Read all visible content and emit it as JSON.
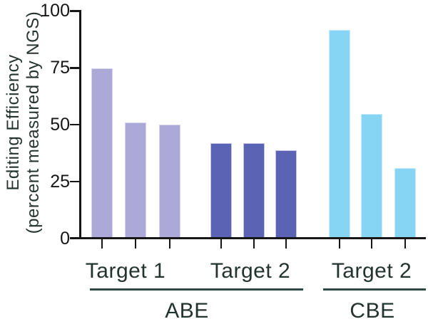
{
  "chart_data": {
    "type": "bar",
    "title": "",
    "ylabel_line1": "Editing Efficiency",
    "ylabel_line2": "(percent measured by NGS)",
    "xlabel": "",
    "ylim": [
      0,
      100
    ],
    "yticks": [
      0,
      25,
      50,
      75,
      100
    ],
    "grid": false,
    "legend": "none",
    "bars_per_group": 3,
    "groups": [
      {
        "target_label": "Target 1",
        "editor": "ABE",
        "color": "#aca9d9",
        "edge_color": "#d6d4ec",
        "values": [
          75,
          51,
          50
        ]
      },
      {
        "target_label": "Target 2",
        "editor": "ABE",
        "color": "#5b63b5",
        "edge_color": "#c3c5e2",
        "values": [
          42,
          42,
          39
        ]
      },
      {
        "target_label": "Target 2",
        "editor": "CBE",
        "color": "#87d5f4",
        "edge_color": "#c8ecfb",
        "values": [
          92,
          55,
          31
        ]
      }
    ],
    "editor_groups": [
      {
        "label": "ABE",
        "spans_targets": [
          "Target 1",
          "Target 2"
        ]
      },
      {
        "label": "CBE",
        "spans_targets": [
          "Target 2"
        ]
      }
    ]
  },
  "colors": {
    "axis": "#161616",
    "tick_label": "#161616",
    "category_text": "#243230",
    "underline": "#2e4843",
    "background": "#ffffff"
  }
}
